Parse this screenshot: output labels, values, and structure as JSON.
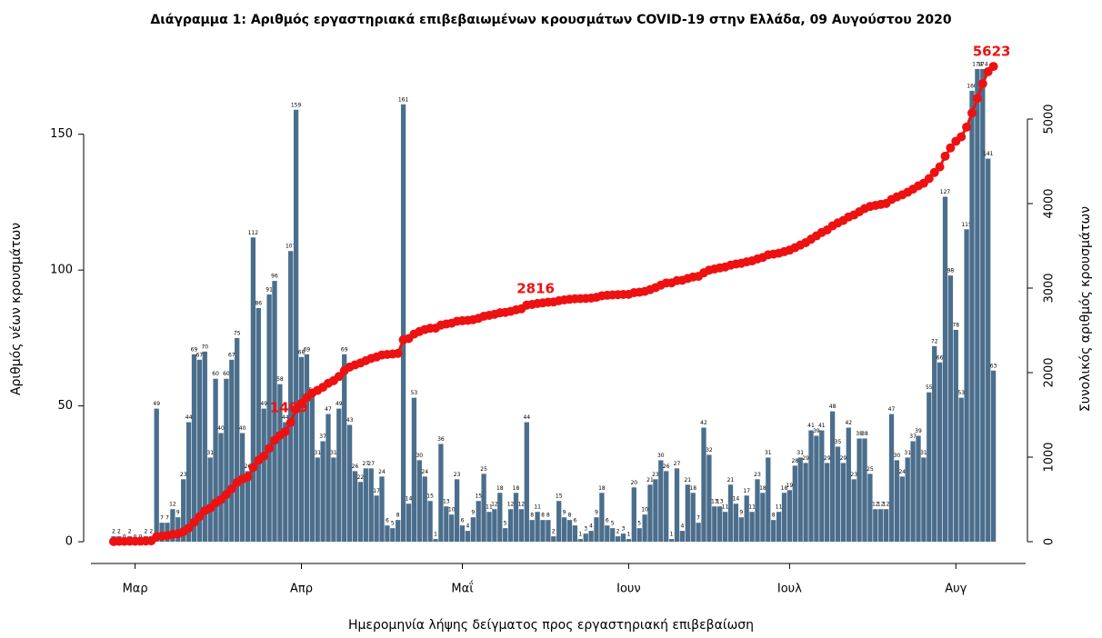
{
  "chart_data": {
    "type": "bar",
    "title": "Διάγραμμα 1: Αριθμός εργαστηριακά επιβεβαιωμένων κρουσμάτων COVID-19 στην Ελλάδα, 09 Αυγούστου 2020",
    "xlabel": "Ημερομηνία λήψης δείγματος προς εργαστηριακή επιβεβαίωση",
    "ylabel": "Αριθμός νέων κρουσμάτων",
    "y2label": "Συνολικός αριθμός κρουσμάτων",
    "categories": [
      null,
      null,
      null,
      null,
      "Μαρ",
      null,
      null,
      null,
      null,
      null,
      null,
      null,
      null,
      null,
      null,
      null,
      null,
      null,
      null,
      null,
      null,
      null,
      null,
      null,
      null,
      null,
      null,
      null,
      null,
      null,
      null,
      null,
      null,
      null,
      null,
      "Απρ",
      null,
      null,
      null,
      null,
      null,
      null,
      null,
      null,
      null,
      null,
      null,
      null,
      null,
      null,
      null,
      null,
      null,
      null,
      null,
      null,
      null,
      null,
      null,
      null,
      null,
      null,
      null,
      null,
      null,
      "Μαΐ",
      null,
      null,
      null,
      null,
      null,
      null,
      null,
      null,
      null,
      null,
      null,
      null,
      null,
      null,
      null,
      null,
      null,
      null,
      null,
      null,
      null,
      null,
      null,
      null,
      null,
      null,
      null,
      null,
      null,
      null,
      "Ιουν",
      null,
      null,
      null,
      null,
      null,
      null,
      null,
      null,
      null,
      null,
      null,
      null,
      null,
      null,
      null,
      null,
      null,
      null,
      null,
      null,
      null,
      null,
      null,
      null,
      null,
      null,
      null,
      null,
      null,
      "Ιουλ",
      null,
      null,
      null,
      null,
      null,
      null,
      null,
      null,
      null,
      null,
      null,
      null,
      null,
      null,
      null,
      null,
      null,
      null,
      null,
      null,
      null,
      null,
      null,
      null,
      null,
      null,
      null,
      null,
      null,
      null,
      "Αυγ",
      null,
      null,
      null,
      null,
      null,
      null,
      null
    ],
    "series": [
      {
        "type": "bar",
        "color": "#4b6e8c",
        "values": [
          2,
          2,
          0,
          2,
          0,
          0,
          2,
          2,
          49,
          7,
          7,
          12,
          9,
          23,
          44,
          69,
          67,
          70,
          31,
          60,
          40,
          60,
          67,
          75,
          40,
          26,
          112,
          86,
          49,
          91,
          96,
          58,
          44,
          107,
          159,
          68,
          69,
          54,
          31,
          37,
          47,
          31,
          49,
          69,
          43,
          26,
          22,
          27,
          27,
          17,
          24,
          6,
          5,
          8,
          161,
          14,
          53,
          30,
          24,
          15,
          1,
          36,
          13,
          10,
          23,
          6,
          4,
          9,
          15,
          25,
          11,
          12,
          18,
          5,
          12,
          18,
          12,
          44,
          8,
          11,
          8,
          8,
          2,
          15,
          9,
          8,
          6,
          1,
          3,
          4,
          9,
          18,
          6,
          5,
          2,
          3,
          1,
          20,
          5,
          10,
          21,
          23,
          30,
          26,
          1,
          27,
          4,
          21,
          18,
          7,
          42,
          32,
          13,
          13,
          11,
          21,
          14,
          9,
          17,
          11,
          23,
          18,
          31,
          8,
          11,
          18,
          19,
          28,
          31,
          29,
          41,
          39,
          41,
          29,
          48,
          35,
          29,
          42,
          23,
          38,
          38,
          25,
          12,
          12,
          12,
          47,
          30,
          24,
          31,
          37,
          39,
          31,
          55,
          72,
          66,
          127,
          98,
          78,
          53,
          115,
          166,
          174,
          174,
          141,
          63
        ]
      },
      {
        "type": "line",
        "axis": "y2",
        "color": "#ee1111",
        "values": [
          2,
          4,
          4,
          6,
          6,
          6,
          8,
          10,
          59,
          66,
          73,
          85,
          94,
          117,
          161,
          230,
          297,
          367,
          398,
          458,
          498,
          558,
          625,
          700,
          740,
          766,
          878,
          964,
          1013,
          1104,
          1200,
          1258,
          1302,
          1409,
          1568,
          1636,
          1705,
          1759,
          1790,
          1827,
          1874,
          1905,
          1954,
          2023,
          2066,
          2092,
          2114,
          2141,
          2168,
          2185,
          2209,
          2215,
          2220,
          2228,
          2389,
          2403,
          2456,
          2486,
          2510,
          2525,
          2526,
          2562,
          2575,
          2585,
          2608,
          2614,
          2618,
          2627,
          2642,
          2667,
          2678,
          2690,
          2708,
          2713,
          2725,
          2743,
          2755,
          2799,
          2807,
          2818,
          2826,
          2834,
          2836,
          2851,
          2860,
          2868,
          2874,
          2875,
          2878,
          2882,
          2891,
          2909,
          2915,
          2920,
          2922,
          2925,
          2926,
          2946,
          2951,
          2961,
          2982,
          3005,
          3035,
          3061,
          3062,
          3089,
          3093,
          3114,
          3132,
          3139,
          3181,
          3213,
          3226,
          3239,
          3250,
          3271,
          3285,
          3294,
          3311,
          3322,
          3345,
          3363,
          3394,
          3402,
          3413,
          3431,
          3450,
          3478,
          3509,
          3538,
          3579,
          3618,
          3659,
          3688,
          3736,
          3771,
          3800,
          3842,
          3865,
          3903,
          3941,
          3966,
          3978,
          3990,
          4002,
          4049,
          4079,
          4103,
          4134,
          4171,
          4210,
          4241,
          4296,
          4368,
          4434,
          4561,
          4659,
          4737,
          4790,
          4905,
          5071,
          5245,
          5419,
          5560,
          5623
        ]
      }
    ],
    "annotations": [
      "1409",
      "2816",
      "5623"
    ],
    "ylim": [
      -8,
      180
    ],
    "yticks": [
      0,
      50,
      100,
      150
    ],
    "y2lim": [
      -258,
      5785
    ],
    "y2ticks": [
      0,
      1000,
      2000,
      3000,
      4000,
      5000
    ]
  }
}
